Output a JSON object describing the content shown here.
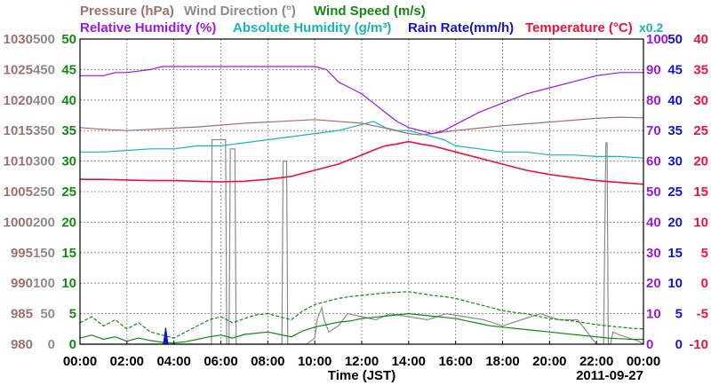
{
  "colors": {
    "pressure": "#a07070",
    "wind_direction": "#8c8c8c",
    "wind_speed": "#128a12",
    "humidity": "#9a18e0",
    "abs_humidity": "#18b4b4",
    "rain": "#1414cc",
    "temperature": "#f0103a",
    "grid": "#7a7a7a",
    "frame": "#000000"
  },
  "chart_data": {
    "type": "line",
    "legend": [
      {
        "key": "pressure",
        "label": "Pressure (hPa)"
      },
      {
        "key": "wind_direction",
        "label": "Wind Direction (°)"
      },
      {
        "key": "wind_speed",
        "label": "Wind Speed (m/s)"
      },
      {
        "key": "humidity",
        "label": "Relative Humidity (%)"
      },
      {
        "key": "abs_humidity",
        "label": "Absolute Humidity (g/m³)"
      },
      {
        "key": "rain",
        "label": "Rain Rate(mm/h)"
      },
      {
        "key": "temperature",
        "label": "Temperature (°C)"
      }
    ],
    "abs_humidity_scale_note": "x0.2",
    "xlabel": "Time (JST)",
    "date_label": "2011-09-27",
    "x_ticks": [
      "00:00",
      "02:00",
      "04:00",
      "06:00",
      "08:00",
      "10:00",
      "12:00",
      "14:00",
      "16:00",
      "18:00",
      "20:00",
      "22:00",
      "00:00"
    ],
    "xlim": [
      0,
      24
    ],
    "axes": {
      "pressure": {
        "ylim": [
          980,
          1030
        ],
        "ticks": [
          "1030",
          "1025",
          "1020",
          "1015",
          "1010",
          "1005",
          "1000",
          "995",
          "990",
          "985",
          "980"
        ]
      },
      "wind_direction": {
        "ylim": [
          0,
          500
        ],
        "ticks": [
          "500",
          "450",
          "400",
          "350",
          "300",
          "250",
          "200",
          "150",
          "100",
          "50",
          "0"
        ]
      },
      "wind_speed": {
        "ylim": [
          0,
          50
        ],
        "ticks": [
          "50",
          "45",
          "40",
          "35",
          "30",
          "25",
          "20",
          "15",
          "10",
          "5",
          "0"
        ]
      },
      "humidity": {
        "ylim": [
          0,
          100
        ],
        "ticks": [
          "100",
          "90",
          "80",
          "70",
          "60",
          "50",
          "40",
          "30",
          "20",
          "10",
          "0"
        ]
      },
      "rain": {
        "ylim": [
          0,
          50
        ],
        "ticks": [
          "50",
          "45",
          "40",
          "35",
          "30",
          "25",
          "20",
          "15",
          "10",
          "5",
          "0"
        ]
      },
      "temperature": {
        "ylim": [
          -10,
          40
        ],
        "ticks": [
          "40",
          "35",
          "30",
          "25",
          "20",
          "15",
          "10",
          "5",
          "0",
          "-5",
          "-10"
        ]
      }
    },
    "grid": true,
    "series": [
      {
        "key": "pressure",
        "axis": "pressure",
        "x": [
          0,
          1,
          2,
          3,
          4,
          5,
          6,
          7,
          8,
          9,
          10,
          11,
          12,
          13,
          14,
          14.5,
          15,
          16,
          17,
          18,
          19,
          20,
          21,
          22,
          23,
          24
        ],
        "y": [
          1015.5,
          1015.2,
          1015.0,
          1015.2,
          1015.4,
          1015.6,
          1015.9,
          1016.2,
          1016.4,
          1016.6,
          1016.8,
          1016.5,
          1016.2,
          1015.4,
          1014.5,
          1014.3,
          1014.5,
          1015.0,
          1015.4,
          1015.8,
          1016.1,
          1016.4,
          1016.7,
          1017.0,
          1017.2,
          1017.1
        ]
      },
      {
        "key": "humidity",
        "axis": "humidity",
        "x": [
          0,
          1,
          1.5,
          2,
          3,
          3.5,
          4,
          5,
          6,
          7,
          8,
          9,
          10,
          10.5,
          11,
          11.5,
          12,
          12.5,
          13,
          13.5,
          14,
          14.5,
          15,
          15.5,
          16,
          17,
          18,
          19,
          20,
          21,
          22,
          23,
          24
        ],
        "y": [
          88,
          88,
          89,
          89,
          90,
          91,
          91,
          91,
          91,
          91,
          91,
          91,
          91,
          90,
          86,
          84,
          82,
          79,
          76,
          73,
          71,
          70,
          69,
          70,
          72,
          76,
          79,
          82,
          84,
          86,
          88,
          89,
          89
        ]
      },
      {
        "key": "abs_humidity",
        "axis": "humidity",
        "x": [
          0,
          1,
          2,
          3,
          4,
          5,
          6,
          7,
          8,
          9,
          10,
          11,
          11.5,
          12,
          12.5,
          13,
          13.5,
          14,
          14.5,
          15,
          15.5,
          16,
          17,
          18,
          19,
          20,
          21,
          22,
          23,
          24
        ],
        "y": [
          63,
          63,
          63.5,
          64,
          64,
          65,
          65,
          66,
          67,
          68,
          69,
          70,
          71,
          72,
          73,
          71,
          70,
          70,
          69,
          68,
          67,
          65,
          64,
          63,
          63,
          62,
          62,
          61.5,
          61.5,
          61
        ]
      },
      {
        "key": "temperature",
        "axis": "temperature",
        "x": [
          0,
          1,
          2,
          3,
          4,
          5,
          6,
          7,
          8,
          9,
          10,
          11,
          12,
          12.5,
          13,
          13.5,
          14,
          14.5,
          15,
          15.5,
          16,
          17,
          18,
          19,
          20,
          21,
          22,
          23,
          24
        ],
        "y": [
          17.0,
          17.0,
          16.9,
          16.8,
          16.8,
          16.7,
          16.6,
          16.7,
          17.0,
          17.5,
          18.5,
          19.5,
          21.0,
          21.8,
          22.5,
          22.8,
          23.2,
          22.8,
          22.5,
          22.0,
          21.5,
          20.5,
          19.5,
          18.5,
          17.8,
          17.3,
          16.8,
          16.5,
          16.2
        ]
      },
      {
        "key": "wind_direction",
        "axis": "wind_direction",
        "x": [
          0,
          1.0,
          2.0,
          3.0,
          3.8,
          4.3,
          5.0,
          5.4,
          5.6,
          5.62,
          6.2,
          6.25,
          6.35,
          6.4,
          6.6,
          6.65,
          6.75,
          6.8,
          7.6,
          8.0,
          8.6,
          8.65,
          8.8,
          8.85,
          9.2,
          9.6,
          9.65,
          10.0,
          10.1,
          10.3,
          10.4,
          10.6,
          11.0,
          11.4,
          12.0,
          12.6,
          13.2,
          14.0,
          14.8,
          15.6,
          16.4,
          17.2,
          18.0,
          18.8,
          19.6,
          20.4,
          21.2,
          21.6,
          21.8,
          22.0,
          22.3,
          22.4,
          22.45,
          22.5,
          22.6,
          22.7,
          23.0,
          23.4,
          23.8,
          24.0
        ],
        "y": [
          0,
          0,
          0,
          0,
          0,
          0,
          0,
          0,
          0,
          335,
          335,
          0,
          0,
          320,
          320,
          0,
          0,
          0,
          0,
          0,
          0,
          300,
          300,
          0,
          0,
          0,
          0,
          10,
          40,
          60,
          40,
          20,
          30,
          50,
          45,
          40,
          50,
          45,
          40,
          50,
          45,
          40,
          30,
          40,
          50,
          40,
          40,
          20,
          10,
          0,
          0,
          330,
          330,
          0,
          0,
          20,
          15,
          10,
          5,
          0
        ]
      },
      {
        "key": "wind_speed",
        "axis": "wind_speed",
        "x": [
          0,
          0.5,
          1,
          1.5,
          2,
          2.5,
          3,
          3.5,
          4,
          4.5,
          5,
          5.5,
          6,
          6.5,
          7,
          7.5,
          8,
          8.5,
          9,
          9.5,
          10,
          10.5,
          11,
          11.5,
          12,
          12.5,
          13,
          13.5,
          14,
          14.5,
          15,
          15.5,
          16,
          16.5,
          17,
          17.5,
          18,
          18.5,
          19,
          19.5,
          20,
          20.5,
          21,
          21.5,
          22,
          22.5,
          23,
          23.5,
          24
        ],
        "y": [
          1.0,
          1.5,
          0.8,
          1.2,
          0.5,
          1.0,
          0.6,
          0.3,
          0.2,
          0.4,
          0.8,
          1.2,
          1.5,
          1.0,
          1.6,
          1.8,
          2.0,
          1.6,
          1.2,
          2.2,
          2.8,
          3.2,
          3.6,
          3.8,
          4.2,
          4.4,
          4.6,
          4.8,
          5.0,
          4.8,
          4.6,
          4.4,
          4.2,
          3.8,
          3.4,
          3.0,
          2.8,
          2.6,
          2.4,
          2.2,
          2.0,
          1.8,
          1.6,
          1.4,
          1.2,
          1.0,
          0.9,
          0.8,
          0.8
        ]
      },
      {
        "key": "wind_speed_gust",
        "axis": "wind_speed",
        "x": [
          0,
          0.5,
          1,
          1.5,
          2,
          2.5,
          3,
          3.5,
          4,
          4.5,
          5,
          5.5,
          6,
          6.5,
          7,
          7.5,
          8,
          8.5,
          9,
          9.5,
          10,
          10.5,
          11,
          11.5,
          12,
          12.5,
          13,
          13.5,
          14,
          14.5,
          15,
          15.5,
          16,
          16.5,
          17,
          17.5,
          18,
          18.5,
          19,
          19.5,
          20,
          20.5,
          21,
          21.5,
          22,
          22.5,
          23,
          23.5,
          24
        ],
        "y": [
          3.5,
          4.5,
          3.0,
          4.0,
          2.5,
          3.5,
          2.0,
          1.5,
          1.0,
          2.0,
          3.0,
          4.0,
          4.5,
          3.5,
          4.2,
          4.8,
          5.0,
          4.5,
          4.0,
          5.5,
          6.5,
          7.0,
          7.5,
          7.8,
          8.0,
          8.2,
          8.4,
          8.5,
          8.6,
          8.3,
          8.0,
          7.8,
          7.5,
          7.0,
          6.5,
          6.0,
          5.5,
          5.2,
          5.0,
          4.6,
          4.2,
          4.0,
          3.8,
          3.5,
          3.2,
          3.0,
          2.8,
          2.6,
          2.5
        ]
      },
      {
        "key": "rain",
        "axis": "rain",
        "x": [
          3.55,
          3.65,
          3.75
        ],
        "y": [
          0,
          2.7,
          0
        ]
      }
    ]
  }
}
